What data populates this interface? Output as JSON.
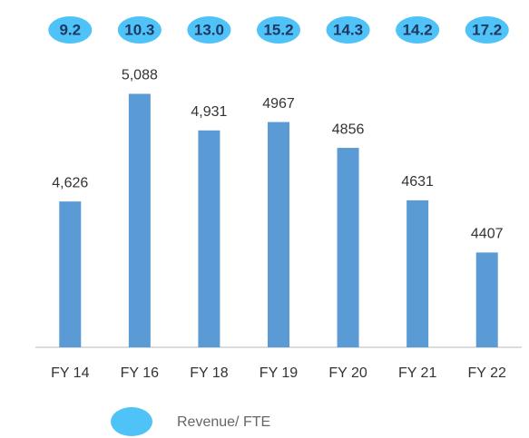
{
  "chart_data": {
    "type": "bar",
    "categories": [
      "FY 14",
      "FY 16",
      "FY 18",
      "FY 19",
      "FY 20",
      "FY 21",
      "FY 22"
    ],
    "series": [
      {
        "color": "#5b9bd5",
        "values": [
          4626,
          5088,
          4931,
          4967,
          4856,
          4631,
          4407
        ],
        "value_labels": [
          "4,626",
          "5,088",
          "4,931",
          "4967",
          "4856",
          "4631",
          "4407"
        ]
      },
      {
        "name": "Revenue/ FTE",
        "color": "#4fc3f7",
        "values": [
          9.2,
          10.3,
          13.0,
          15.2,
          14.3,
          14.2,
          17.2
        ],
        "value_labels": [
          "9.2",
          "10.3",
          "13.0",
          "15.2",
          "14.3",
          "14.2",
          "17.2"
        ]
      }
    ],
    "ylim": [
      4000,
      5300
    ],
    "grid": false,
    "legend": "bottom"
  }
}
